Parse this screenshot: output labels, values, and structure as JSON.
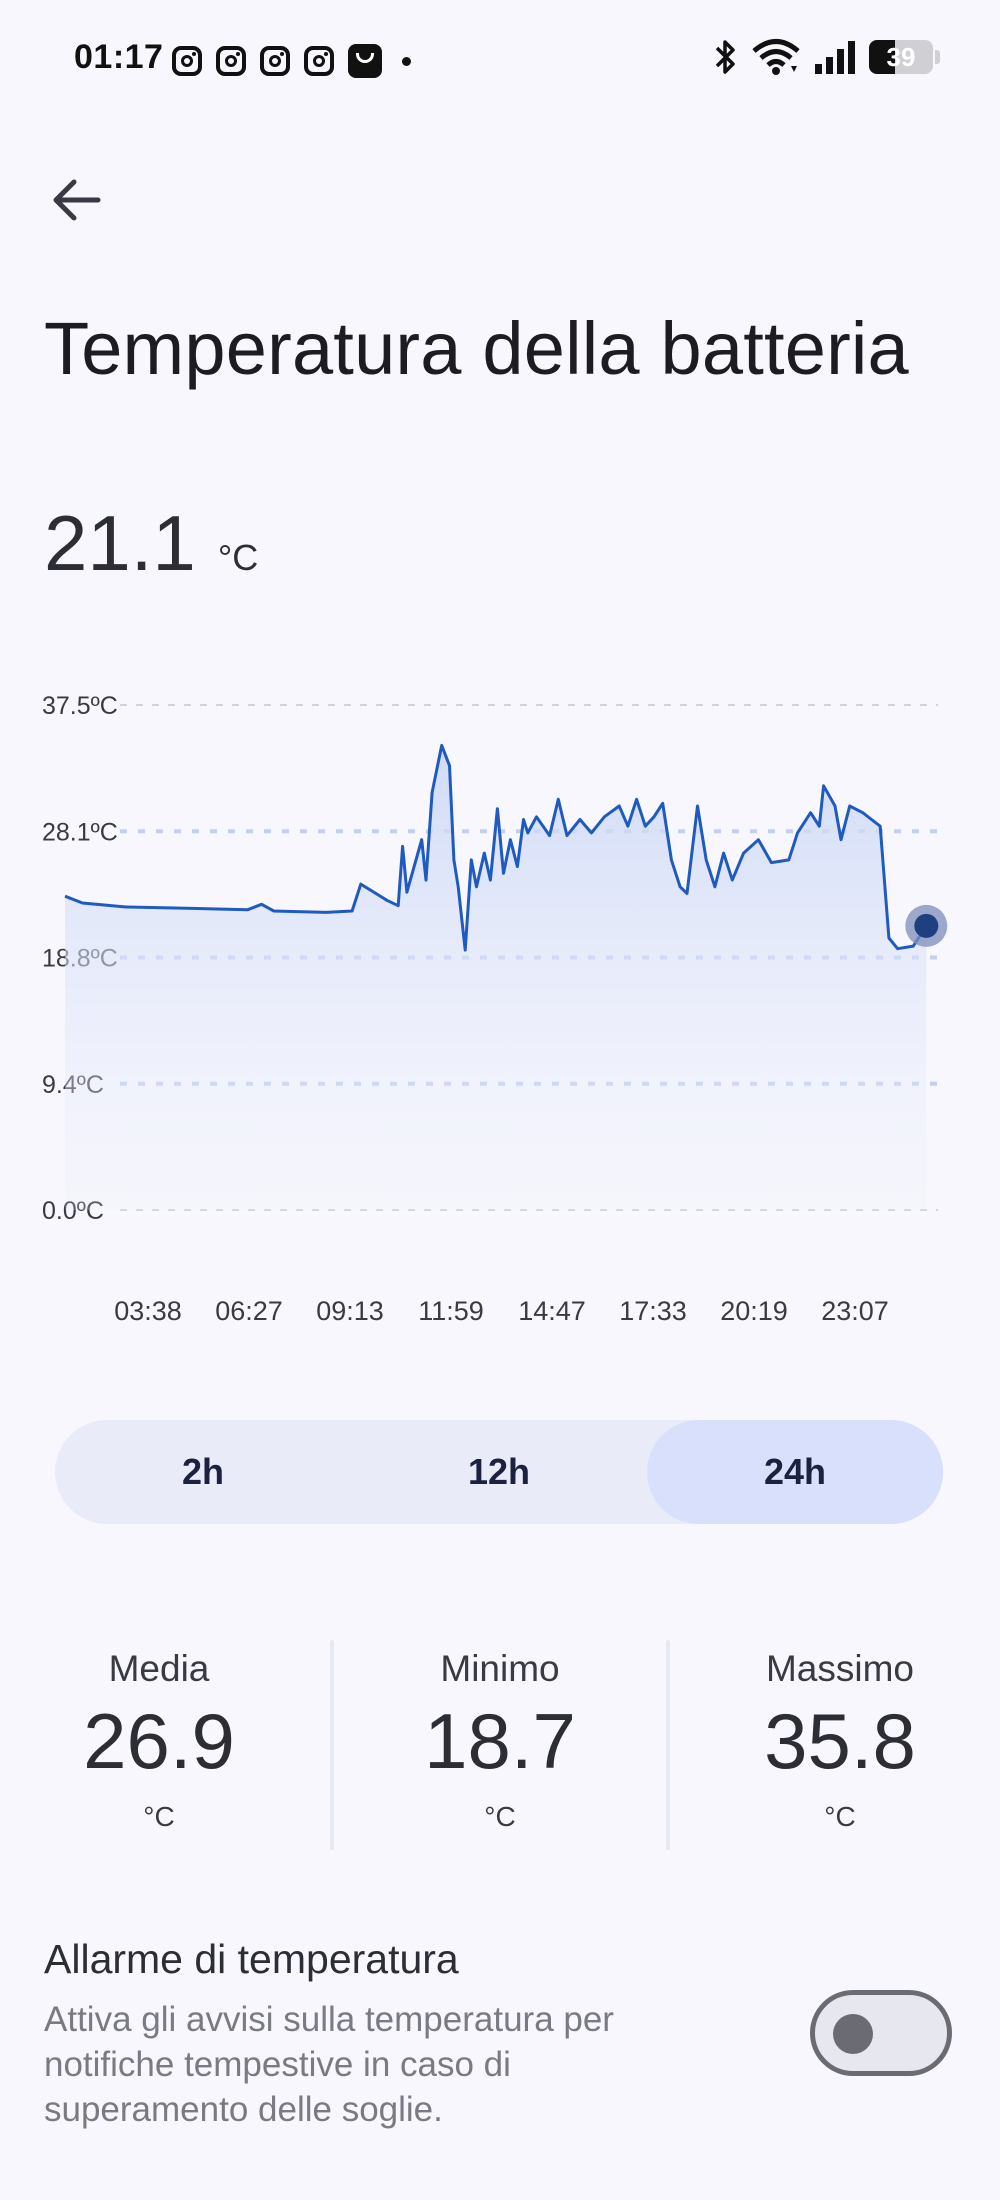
{
  "status_bar": {
    "time": "01:17",
    "notification_icons": [
      "instagram-icon",
      "instagram-icon",
      "instagram-icon",
      "instagram-icon",
      "shop-icon"
    ],
    "battery_level": "39"
  },
  "header": {
    "title": "Temperatura della batteria"
  },
  "current": {
    "value": "21.1",
    "unit": "°C"
  },
  "chart_data": {
    "type": "area",
    "y_ticks": [
      "37.5ºC",
      "28.1ºC",
      "18.8ºC",
      "9.4ºC",
      "0.0ºC"
    ],
    "ylim": [
      0,
      37.5
    ],
    "x_ticks": [
      "03:38",
      "06:27",
      "09:13",
      "11:59",
      "14:47",
      "17:33",
      "20:19",
      "23:07"
    ],
    "grid": "horizontal-dashed",
    "series": [
      {
        "color": "#1f5bbf",
        "points": [
          [
            0.0,
            23.3
          ],
          [
            0.02,
            22.8
          ],
          [
            0.07,
            22.5
          ],
          [
            0.14,
            22.4
          ],
          [
            0.21,
            22.3
          ],
          [
            0.226,
            22.7
          ],
          [
            0.24,
            22.2
          ],
          [
            0.3,
            22.1
          ],
          [
            0.33,
            22.2
          ],
          [
            0.34,
            24.2
          ],
          [
            0.37,
            23.0
          ],
          [
            0.383,
            22.6
          ],
          [
            0.388,
            27.0
          ],
          [
            0.393,
            23.6
          ],
          [
            0.41,
            27.5
          ],
          [
            0.415,
            24.5
          ],
          [
            0.422,
            31.0
          ],
          [
            0.433,
            34.5
          ],
          [
            0.442,
            33.0
          ],
          [
            0.447,
            26.0
          ],
          [
            0.452,
            24.0
          ],
          [
            0.46,
            19.3
          ],
          [
            0.467,
            26.0
          ],
          [
            0.473,
            24.0
          ],
          [
            0.482,
            26.5
          ],
          [
            0.489,
            24.5
          ],
          [
            0.497,
            29.8
          ],
          [
            0.504,
            25.0
          ],
          [
            0.512,
            27.5
          ],
          [
            0.52,
            25.5
          ],
          [
            0.527,
            29.0
          ],
          [
            0.532,
            28.0
          ],
          [
            0.542,
            29.2
          ],
          [
            0.557,
            27.8
          ],
          [
            0.567,
            30.5
          ],
          [
            0.577,
            27.8
          ],
          [
            0.592,
            29.0
          ],
          [
            0.605,
            28.0
          ],
          [
            0.62,
            29.2
          ],
          [
            0.637,
            30.0
          ],
          [
            0.647,
            28.5
          ],
          [
            0.657,
            30.5
          ],
          [
            0.667,
            28.5
          ],
          [
            0.677,
            29.2
          ],
          [
            0.687,
            30.2
          ],
          [
            0.697,
            26.0
          ],
          [
            0.707,
            24.0
          ],
          [
            0.715,
            23.5
          ],
          [
            0.727,
            30.0
          ],
          [
            0.737,
            26.0
          ],
          [
            0.747,
            24.0
          ],
          [
            0.757,
            26.5
          ],
          [
            0.767,
            24.5
          ],
          [
            0.78,
            26.5
          ],
          [
            0.797,
            27.5
          ],
          [
            0.812,
            25.8
          ],
          [
            0.832,
            26.0
          ],
          [
            0.842,
            28.0
          ],
          [
            0.857,
            29.5
          ],
          [
            0.867,
            28.5
          ],
          [
            0.872,
            31.5
          ],
          [
            0.885,
            30.0
          ],
          [
            0.892,
            27.5
          ],
          [
            0.902,
            30.0
          ],
          [
            0.917,
            29.5
          ],
          [
            0.927,
            29.0
          ],
          [
            0.937,
            28.5
          ],
          [
            0.947,
            20.2
          ],
          [
            0.957,
            19.4
          ],
          [
            0.975,
            19.6
          ],
          [
            0.99,
            21.1
          ]
        ]
      }
    ]
  },
  "time_range": {
    "options": [
      "2h",
      "12h",
      "24h"
    ],
    "selected": "24h"
  },
  "stats": {
    "media": {
      "label": "Media",
      "value": "26.9",
      "unit": "°C"
    },
    "minimo": {
      "label": "Minimo",
      "value": "18.7",
      "unit": "°C"
    },
    "massimo": {
      "label": "Massimo",
      "value": "35.8",
      "unit": "°C"
    }
  },
  "alarm": {
    "title": "Allarme di temperatura",
    "description": "Attiva gli avvisi sulla temperatura per notifiche tempestive in caso di superamento delle soglie.",
    "enabled": false
  }
}
